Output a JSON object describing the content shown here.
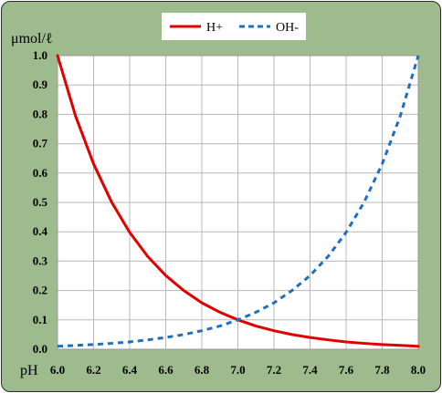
{
  "chart_data": {
    "type": "line",
    "title": "",
    "xlabel": "pH",
    "ylabel": "μmol/ℓ",
    "xlim": [
      6.0,
      8.0
    ],
    "ylim": [
      0.0,
      1.0
    ],
    "x_ticks": [
      "6.0",
      "6.2",
      "6.4",
      "6.6",
      "6.8",
      "7.0",
      "7.2",
      "7.4",
      "7.6",
      "7.8",
      "8.0"
    ],
    "y_ticks": [
      "0.0",
      "0.1",
      "0.2",
      "0.3",
      "0.4",
      "0.5",
      "0.6",
      "0.7",
      "0.8",
      "0.9",
      "1.0"
    ],
    "grid": true,
    "legend_position": "top-center",
    "x": [
      6.0,
      6.1,
      6.2,
      6.3,
      6.4,
      6.5,
      6.6,
      6.7,
      6.8,
      6.9,
      7.0,
      7.1,
      7.2,
      7.3,
      7.4,
      7.5,
      7.6,
      7.7,
      7.8,
      7.9,
      8.0
    ],
    "series": [
      {
        "name": "H+",
        "color": "#e00000",
        "style": "solid",
        "values": [
          1.0,
          0.794,
          0.631,
          0.501,
          0.398,
          0.316,
          0.251,
          0.2,
          0.158,
          0.126,
          0.1,
          0.079,
          0.063,
          0.05,
          0.04,
          0.032,
          0.025,
          0.02,
          0.016,
          0.013,
          0.01
        ]
      },
      {
        "name": "OH-",
        "color": "#1f6fbf",
        "style": "dashed",
        "values": [
          0.01,
          0.013,
          0.016,
          0.02,
          0.025,
          0.032,
          0.04,
          0.05,
          0.063,
          0.079,
          0.1,
          0.126,
          0.158,
          0.2,
          0.251,
          0.316,
          0.398,
          0.501,
          0.631,
          0.794,
          1.0
        ]
      }
    ]
  }
}
